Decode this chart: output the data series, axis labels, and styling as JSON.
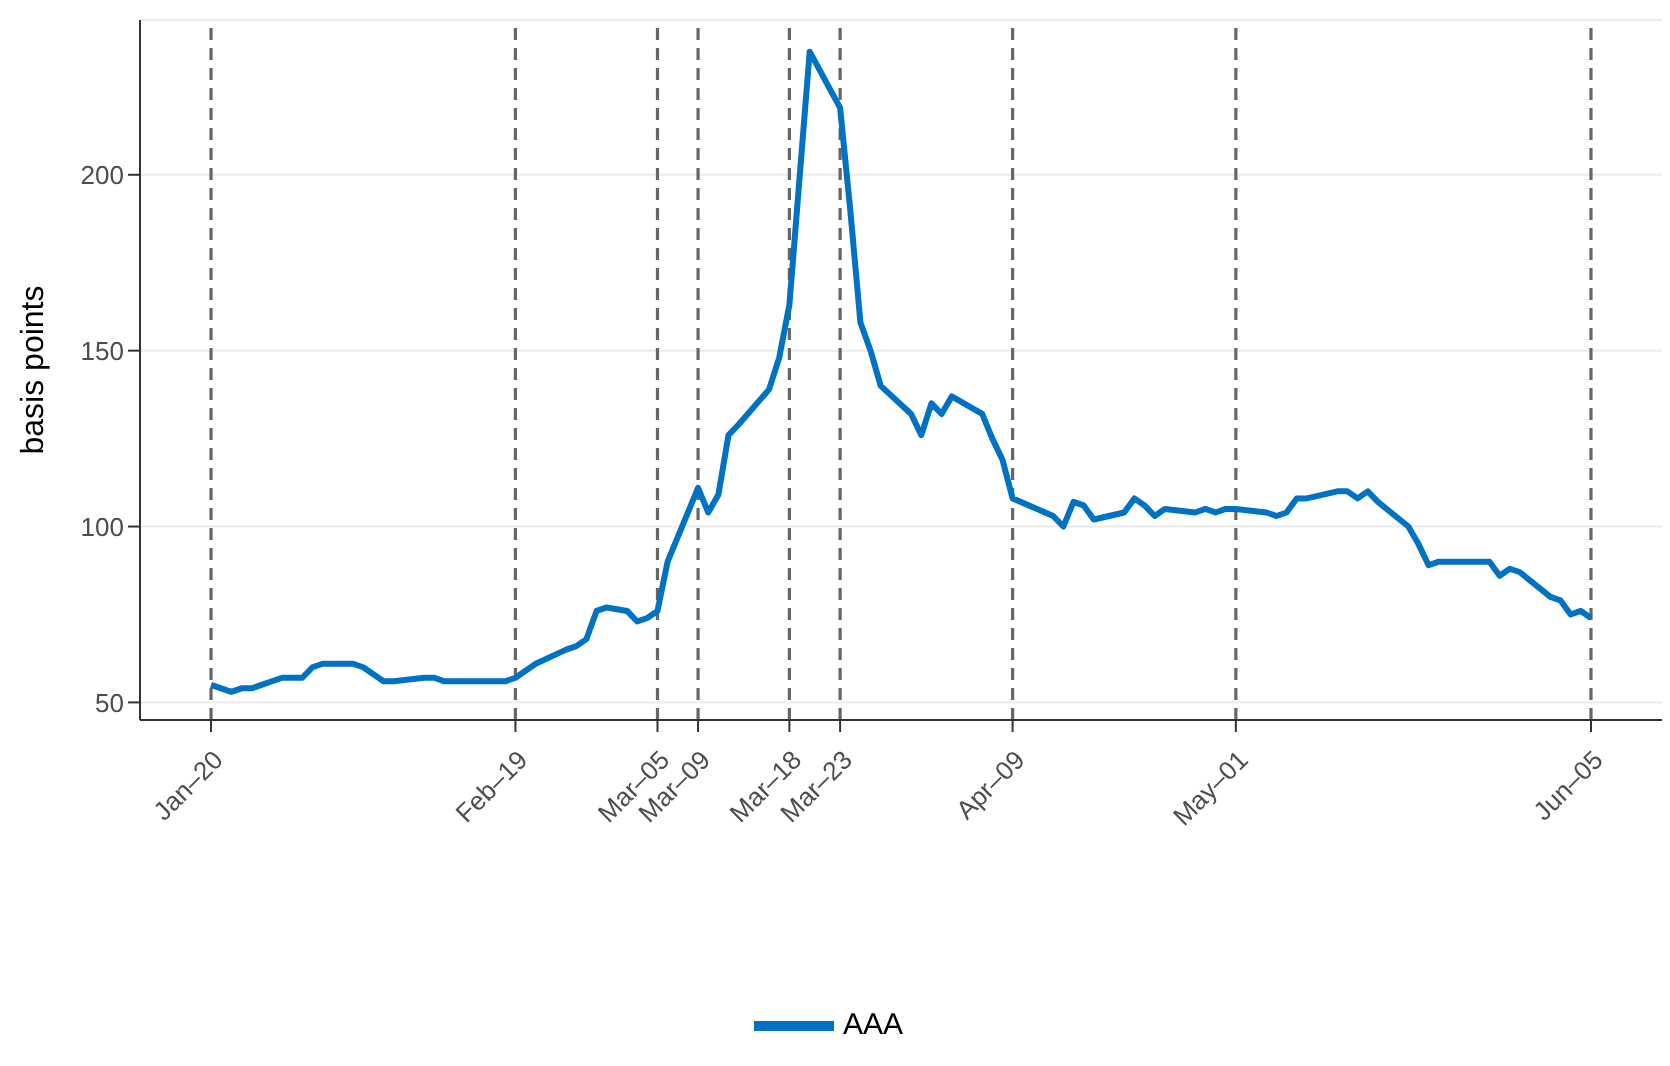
{
  "chart_data": {
    "type": "line",
    "ylabel": "basis points",
    "x": [
      "--01-20",
      "--01-21",
      "--01-22",
      "--01-23",
      "--01-24",
      "--01-27",
      "--01-28",
      "--01-29",
      "--01-30",
      "--01-31",
      "--02-03",
      "--02-04",
      "--02-05",
      "--02-06",
      "--02-07",
      "--02-10",
      "--02-11",
      "--02-12",
      "--02-13",
      "--02-14",
      "--02-18",
      "--02-19",
      "--02-20",
      "--02-21",
      "--02-24",
      "--02-25",
      "--02-26",
      "--02-27",
      "--02-28",
      "--03-02",
      "--03-03",
      "--03-04",
      "--03-05",
      "--03-06",
      "--03-09",
      "--03-10",
      "--03-11",
      "--03-12",
      "--03-13",
      "--03-16",
      "--03-17",
      "--03-18",
      "--03-19",
      "--03-20",
      "--03-23",
      "--03-24",
      "--03-25",
      "--03-26",
      "--03-27",
      "--03-30",
      "--03-31",
      "--04-01",
      "--04-02",
      "--04-03",
      "--04-06",
      "--04-07",
      "--04-08",
      "--04-09",
      "--04-13",
      "--04-14",
      "--04-15",
      "--04-16",
      "--04-17",
      "--04-20",
      "--04-21",
      "--04-22",
      "--04-23",
      "--04-24",
      "--04-27",
      "--04-28",
      "--04-29",
      "--04-30",
      "--05-01",
      "--05-04",
      "--05-05",
      "--05-06",
      "--05-07",
      "--05-08",
      "--05-11",
      "--05-12",
      "--05-13",
      "--05-14",
      "--05-15",
      "--05-18",
      "--05-19",
      "--05-20",
      "--05-21",
      "--05-22",
      "--05-26",
      "--05-27",
      "--05-28",
      "--05-29",
      "--06-01",
      "--06-02",
      "--06-03",
      "--06-04",
      "--06-05"
    ],
    "series": [
      {
        "name": "AAA",
        "color": "#0072c3",
        "values": [
          55,
          54,
          53,
          54,
          54,
          57,
          57,
          57,
          60,
          61,
          61,
          60,
          58,
          56,
          56,
          57,
          57,
          56,
          56,
          56,
          56,
          57,
          59,
          61,
          65,
          66,
          68,
          76,
          77,
          76,
          73,
          74,
          76,
          90,
          111,
          104,
          109,
          126,
          129,
          139,
          148,
          163,
          199,
          235,
          219,
          190,
          158,
          150,
          140,
          132,
          126,
          135,
          132,
          137,
          132,
          125,
          119,
          108,
          103,
          100,
          107,
          106,
          102,
          104,
          108,
          106,
          103,
          105,
          104,
          105,
          104,
          105,
          105,
          104,
          103,
          104,
          108,
          108,
          110,
          110,
          108,
          110,
          107,
          100,
          95,
          89,
          90,
          90,
          90,
          86,
          88,
          87,
          80,
          79,
          75,
          76,
          74
        ]
      }
    ],
    "xlim": [
      "--01-13",
      "--06-12"
    ],
    "xticks": [
      {
        "value": "--01-20",
        "label": "Jan–20"
      },
      {
        "value": "--02-19",
        "label": "Feb–19"
      },
      {
        "value": "--03-05",
        "label": "Mar–05"
      },
      {
        "value": "--03-09",
        "label": "Mar–09"
      },
      {
        "value": "--03-18",
        "label": "Mar–18"
      },
      {
        "value": "--03-23",
        "label": "Mar–23"
      },
      {
        "value": "--04-09",
        "label": "Apr–09"
      },
      {
        "value": "--05-01",
        "label": "May–01"
      },
      {
        "value": "--06-05",
        "label": "Jun–05"
      }
    ],
    "ylim": [
      45,
      244
    ],
    "yticks": [
      50,
      100,
      150,
      200
    ],
    "ref_lines": [
      {
        "axis": "x",
        "value": "--01-20",
        "color": "#666666",
        "line_style": "dashed"
      },
      {
        "axis": "x",
        "value": "--02-19",
        "color": "#666666",
        "line_style": "dashed"
      },
      {
        "axis": "x",
        "value": "--03-05",
        "color": "#666666",
        "line_style": "dashed"
      },
      {
        "axis": "x",
        "value": "--03-09",
        "color": "#666666",
        "line_style": "dashed"
      },
      {
        "axis": "x",
        "value": "--03-18",
        "color": "#666666",
        "line_style": "dashed"
      },
      {
        "axis": "x",
        "value": "--03-23",
        "color": "#666666",
        "line_style": "dashed"
      },
      {
        "axis": "x",
        "value": "--04-09",
        "color": "#666666",
        "line_style": "dashed"
      },
      {
        "axis": "x",
        "value": "--05-01",
        "color": "#666666",
        "line_style": "dashed"
      },
      {
        "axis": "x",
        "value": "--06-05",
        "color": "#666666",
        "line_style": "dashed"
      }
    ],
    "grid": "y",
    "legend": "bottom",
    "marker": "none",
    "line_style": "solid"
  }
}
